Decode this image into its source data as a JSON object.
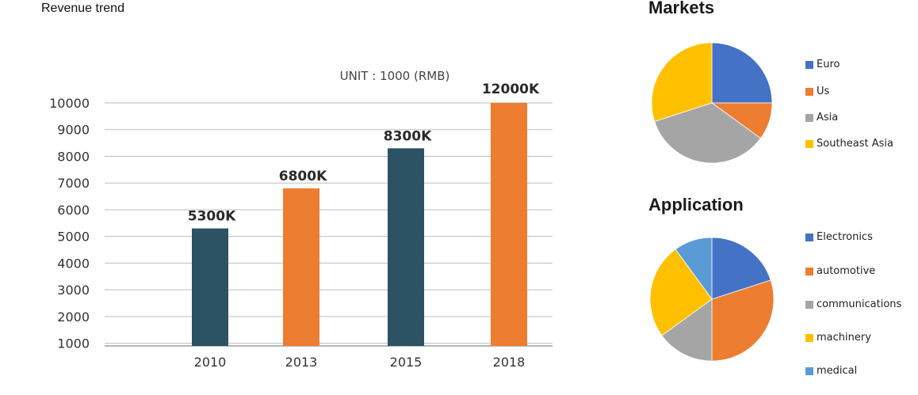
{
  "header": {
    "title": "Revenue trend"
  },
  "chart_data": [
    {
      "type": "bar",
      "unit_note": "UNIT : 1000 (RMB)",
      "categories": [
        "2010",
        "2013",
        "2015",
        "2018"
      ],
      "values": [
        5300,
        6800,
        8300,
        12000
      ],
      "data_labels": [
        "5300K",
        "6800K",
        "8300K",
        "12000K"
      ],
      "bar_colors": [
        "#2b5364",
        "#ed7d31",
        "#2b5364",
        "#ed7d31"
      ],
      "y_ticks": [
        "10000",
        "9000",
        "8000",
        "7000",
        "6000",
        "5000",
        "4000",
        "3000",
        "2000",
        "1000"
      ],
      "y_tick_values": [
        10000,
        9000,
        8000,
        7000,
        6000,
        5000,
        4000,
        3000,
        2000,
        1000
      ],
      "ylim": [
        900,
        10000
      ],
      "grid": true
    },
    {
      "type": "pie",
      "title": "Markets",
      "labels": [
        "Euro",
        "Us",
        "Asia",
        "Southeast Asia"
      ],
      "values": [
        25,
        10,
        35,
        30
      ],
      "colors": [
        "#4472c4",
        "#ed7d31",
        "#a5a5a5",
        "#ffc000"
      ],
      "legend_position": "right"
    },
    {
      "type": "pie",
      "title": "Application",
      "labels": [
        "Electronics",
        "automotive",
        "communications",
        "machinery",
        "medical"
      ],
      "values": [
        20,
        30,
        15,
        25,
        10
      ],
      "colors": [
        "#4472c4",
        "#ed7d31",
        "#a5a5a5",
        "#ffc000",
        "#5b9bd5"
      ],
      "legend_position": "right"
    }
  ]
}
